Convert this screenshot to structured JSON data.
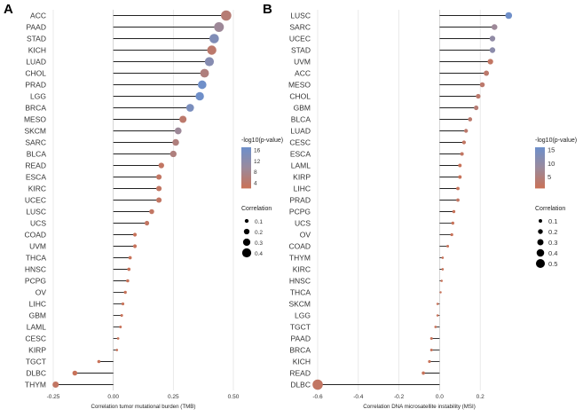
{
  "colors": {
    "low": "#c8735a",
    "mid": "#9a8a9c",
    "high": "#6f8fc9",
    "grid": "#e2e2e2",
    "stem": "#222222"
  },
  "chart_data": [
    {
      "panel": "A",
      "type": "lollipop",
      "xlabel": "Correlation tumor mutational burden (TMB)",
      "xlim": [
        -0.25,
        0.5
      ],
      "xticks": [
        -0.25,
        0,
        0.25,
        0.5
      ],
      "xtick_labels": [
        "-0.25",
        "0.00",
        "0.25",
        "0.50"
      ],
      "categories": [
        "ACC",
        "PAAD",
        "STAD",
        "KICH",
        "LUAD",
        "CHOL",
        "PRAD",
        "LGG",
        "BRCA",
        "MESO",
        "SKCM",
        "SARC",
        "BLCA",
        "READ",
        "ESCA",
        "KIRC",
        "UCEC",
        "LUSC",
        "UCS",
        "COAD",
        "UVM",
        "THCA",
        "HNSC",
        "PCPG",
        "OV",
        "LIHC",
        "GBM",
        "LAML",
        "CESC",
        "KIRP",
        "TGCT",
        "DLBC",
        "THYM"
      ],
      "values": [
        0.47,
        0.44,
        0.42,
        0.41,
        0.4,
        0.38,
        0.37,
        0.36,
        0.32,
        0.29,
        0.27,
        0.26,
        0.25,
        0.2,
        0.19,
        0.19,
        0.19,
        0.16,
        0.14,
        0.09,
        0.09,
        0.07,
        0.065,
        0.06,
        0.05,
        0.04,
        0.035,
        0.03,
        0.02,
        0.015,
        -0.06,
        -0.16,
        -0.24
      ],
      "neglog10p": [
        5,
        9,
        14,
        4,
        13,
        6,
        17,
        17,
        15,
        4,
        9,
        6,
        6,
        3,
        3,
        3,
        3,
        3,
        3,
        2,
        2,
        2,
        2,
        2,
        2,
        2,
        2,
        2,
        1,
        1,
        2,
        1,
        3
      ],
      "color_legend": {
        "title": "-log10(p-value)",
        "ticks": [
          16,
          12,
          8,
          4
        ],
        "range": [
          2,
          17
        ]
      },
      "size_legend": {
        "title": "Correlation",
        "ticks": [
          0.1,
          0.2,
          0.3,
          0.4
        ],
        "labels": [
          "0.1",
          "0.2",
          "0.3",
          "0.4"
        ]
      }
    },
    {
      "panel": "B",
      "type": "lollipop",
      "xlabel": "Correlation DNA microsatellite instability (MSI)",
      "xlim": [
        -0.6,
        0.4
      ],
      "xticks": [
        -0.6,
        -0.4,
        -0.2,
        0,
        0.2
      ],
      "xtick_labels": [
        "-0.6",
        "-0.4",
        "-0.2",
        "0.0",
        "0.2"
      ],
      "categories": [
        "LUSC",
        "SARC",
        "UCEC",
        "STAD",
        "UVM",
        "ACC",
        "MESO",
        "CHOL",
        "GBM",
        "BLCA",
        "LUAD",
        "CESC",
        "ESCA",
        "LAML",
        "KIRP",
        "LIHC",
        "PRAD",
        "PCPG",
        "UCS",
        "OV",
        "COAD",
        "THYM",
        "KIRC",
        "HNSC",
        "THCA",
        "SKCM",
        "LGG",
        "TGCT",
        "PAAD",
        "BRCA",
        "KICH",
        "READ",
        "DLBC"
      ],
      "values": [
        0.34,
        0.27,
        0.26,
        0.26,
        0.25,
        0.23,
        0.21,
        0.19,
        0.18,
        0.15,
        0.13,
        0.12,
        0.11,
        0.1,
        0.1,
        0.09,
        0.09,
        0.07,
        0.065,
        0.06,
        0.04,
        0.015,
        0.015,
        0.01,
        0.005,
        -0.01,
        -0.01,
        -0.02,
        -0.04,
        -0.04,
        -0.05,
        -0.08,
        -0.6
      ],
      "neglog10p": [
        16,
        8,
        10,
        11,
        2,
        3,
        3,
        3,
        4,
        3,
        3,
        2,
        2,
        1,
        1,
        1,
        2,
        1,
        1,
        1,
        1,
        1,
        1,
        1,
        1,
        1,
        1,
        1,
        1,
        1,
        1,
        1,
        2
      ],
      "color_legend": {
        "title": "-log10(p-value)",
        "ticks": [
          15,
          10,
          5
        ],
        "range": [
          1,
          16
        ]
      },
      "size_legend": {
        "title": "Correlation",
        "ticks": [
          0.1,
          0.2,
          0.3,
          0.4,
          0.5
        ],
        "labels": [
          "0.1",
          "0.2",
          "0.3",
          "0.4",
          "0.5"
        ]
      }
    }
  ]
}
